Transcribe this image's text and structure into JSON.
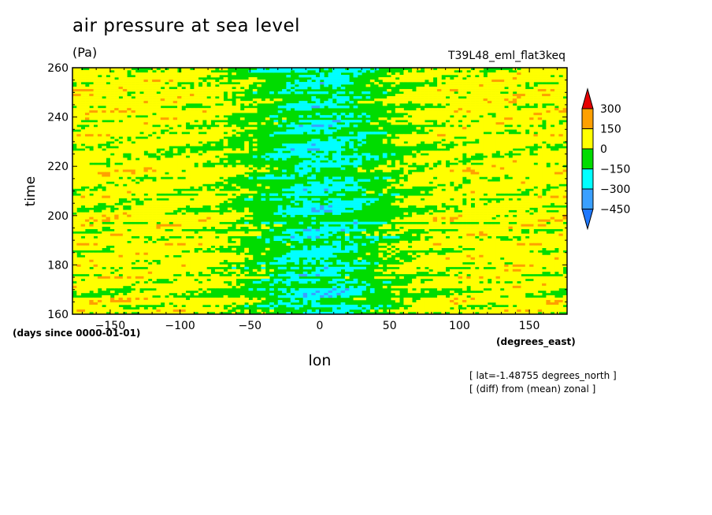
{
  "title": "air pressure at sea level",
  "units": "(Pa)",
  "run_label": "T39L48_eml_flat3keq",
  "x_unit_note": "(degrees_east)",
  "y_unit_note": "(days since 0000-01-01)",
  "notes": [
    "[ lat=-1.48755 degrees_north ]",
    "[ (diff) from (mean) zonal ]"
  ],
  "chart_data": {
    "type": "heatmap",
    "title": "air pressure at sea level",
    "xlabel": "lon",
    "ylabel": "time",
    "xlim": [
      -177,
      177
    ],
    "ylim": [
      160,
      260
    ],
    "xticks": [
      -150,
      -100,
      -50,
      0,
      50,
      100,
      150
    ],
    "yticks": [
      160,
      180,
      200,
      220,
      240,
      260
    ],
    "colorbar": {
      "levels": [
        -450,
        -300,
        -150,
        0,
        150,
        300
      ],
      "labels": [
        "300",
        "150",
        "0",
        "-150",
        "-300",
        "-450"
      ],
      "colors": [
        "#1e78ff",
        "#3aa0ff",
        "#00ffff",
        "#00dc00",
        "#ffff00",
        "#ffa000",
        "#e60000"
      ]
    },
    "colors": {
      "positive": "#ffff00",
      "strong_positive": "#ffa000",
      "neutral": "#00dc00",
      "negative": "#00ffff",
      "strong_negative": "#3aa0ff"
    }
  }
}
